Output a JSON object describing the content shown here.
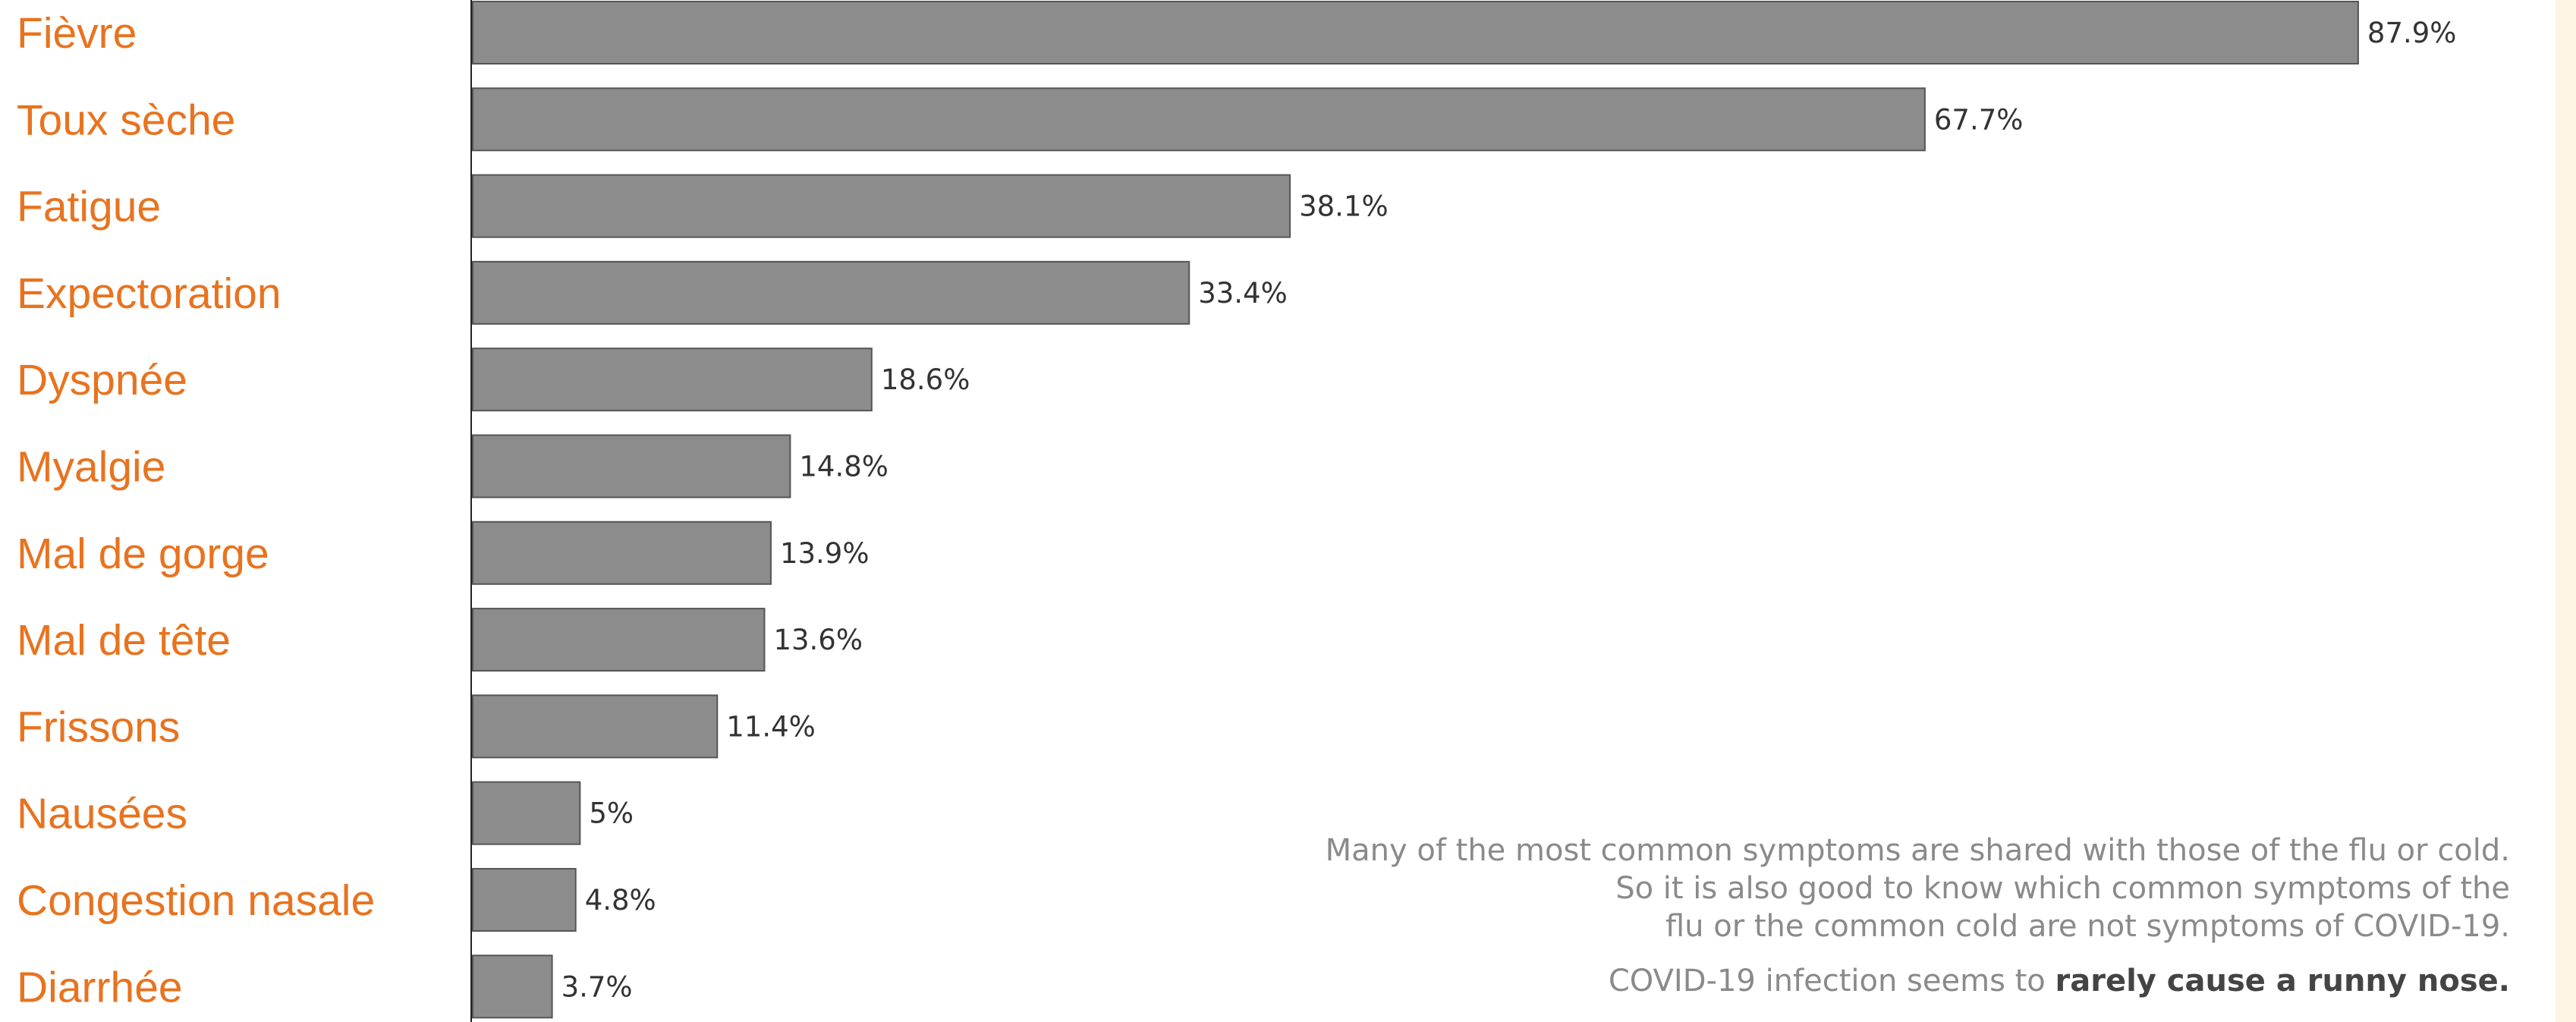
{
  "chart_data": {
    "type": "bar",
    "orientation": "horizontal",
    "title": "",
    "xlabel": "",
    "ylabel": "",
    "xlim": [
      0,
      100
    ],
    "categories": [
      "Fièvre",
      "Toux sèche",
      "Fatigue",
      "Expectoration",
      "Dyspnée",
      "Myalgie",
      "Mal de gorge",
      "Mal de tête",
      "Frissons",
      "Nausées",
      "Congestion nasale",
      "Diarrhée"
    ],
    "values": [
      87.9,
      67.7,
      38.1,
      33.4,
      18.6,
      14.8,
      13.9,
      13.6,
      11.4,
      5,
      4.8,
      3.7
    ],
    "value_labels": [
      "87.9%",
      "67.7%",
      "38.1%",
      "33.4%",
      "18.6%",
      "14.8%",
      "13.9%",
      "13.6%",
      "11.4%",
      "5%",
      "4.8%",
      "3.7%"
    ],
    "grid": false,
    "legend": "none"
  },
  "note": {
    "lines": [
      "Many of the most common symptoms are shared with those of the flu or cold.",
      "So it is also good to know which common symptoms of the",
      "flu or the common cold are not symptoms of COVID-19."
    ],
    "last_prefix": "COVID-19 infection seems to ",
    "last_bold": "rarely cause a runny nose."
  },
  "colors": {
    "bar_fill": "#8c8c8c",
    "bar_stroke": "#555555",
    "category_text": "#e8731f",
    "value_text": "#333333",
    "note_text": "#8a8a8a",
    "note_bold": "#444444",
    "right_strip": "#fdf5e3",
    "axis": "#222222"
  }
}
